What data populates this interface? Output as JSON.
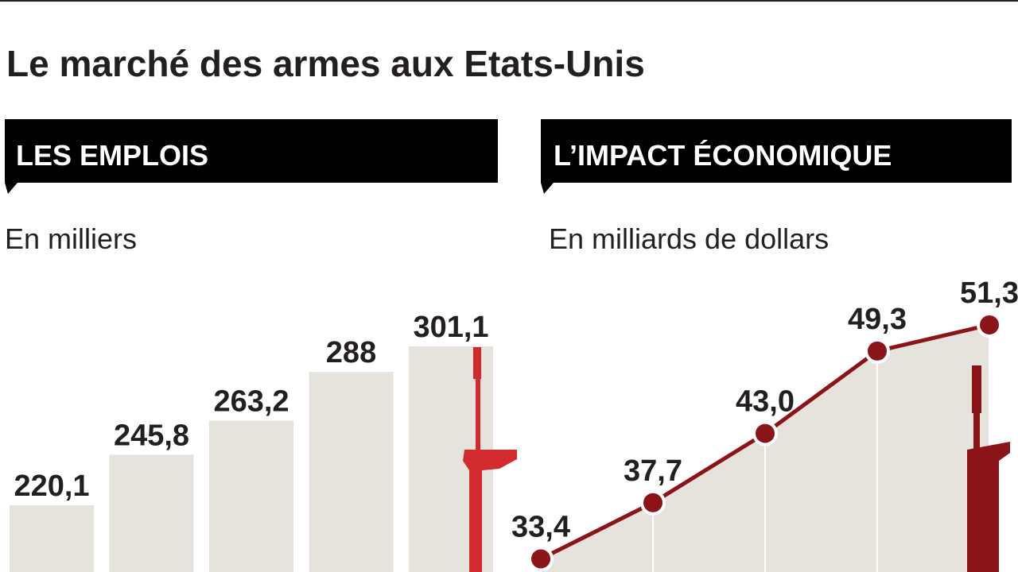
{
  "title": "Le marché des armes aux Etats-Unis",
  "chart_data": [
    {
      "type": "bar",
      "title": "LES EMPLOIS",
      "subtitle": "En milliers",
      "values": [
        220.1,
        245.8,
        263.2,
        288,
        301.1
      ],
      "value_labels": [
        "220,1",
        "245,8",
        "263,2",
        "288",
        "301,1"
      ],
      "color": "#e6e3dd",
      "ylim": [
        186,
        344
      ]
    },
    {
      "type": "line",
      "title": "L’IMPACT ÉCONOMIQUE",
      "subtitle": "En milliards de dollars",
      "values": [
        33.4,
        37.7,
        43.0,
        49.3,
        51.3
      ],
      "value_labels": [
        "33,4",
        "37,7",
        "43,0",
        "49,3",
        "51,3"
      ],
      "color": "#8b1418",
      "ylim": [
        32.4,
        56.1
      ]
    }
  ]
}
